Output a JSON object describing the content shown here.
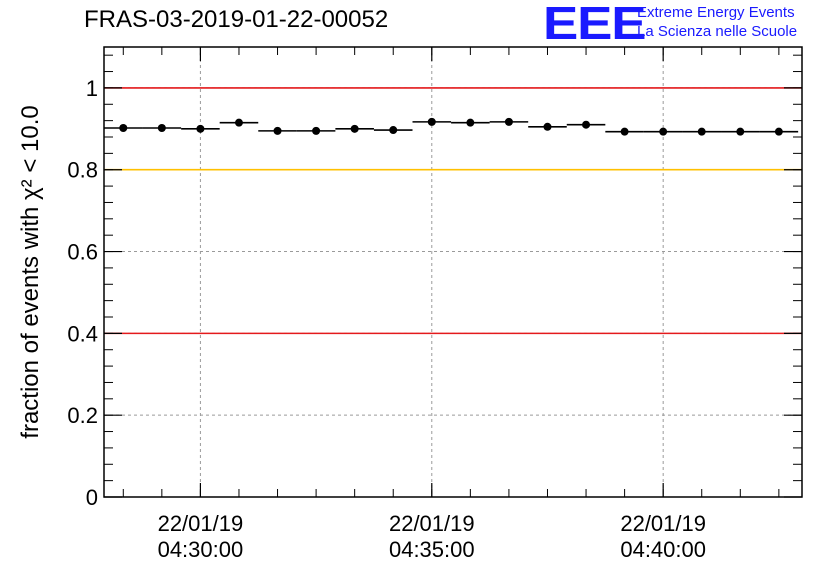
{
  "header": {
    "title": "FRAS-03-2019-01-22-00052",
    "logo": "EEE",
    "logo_line1": "Extreme Energy Events",
    "logo_line2": "La Scienza nelle Scuole"
  },
  "chart_data": {
    "type": "scatter",
    "title": "FRAS-03-2019-01-22-00052",
    "ylabel": "fraction of events with χ² < 10.0",
    "xlabel": "",
    "ylim": [
      0,
      1.1
    ],
    "xlim": [
      "2019-01-22T04:27:55",
      "2019-01-22T04:43:00"
    ],
    "grid": true,
    "y_ticks": [
      0,
      0.2,
      0.4,
      0.6,
      0.8,
      1
    ],
    "y_tick_labels": [
      "0",
      "0.2",
      "0.4",
      "0.6",
      "0.8",
      "1"
    ],
    "x_ticks": [
      {
        "time": "2019-01-22T04:30:00",
        "line1": "22/01/19",
        "line2": "04:30:00"
      },
      {
        "time": "2019-01-22T04:35:00",
        "line1": "22/01/19",
        "line2": "04:35:00"
      },
      {
        "time": "2019-01-22T04:40:00",
        "line1": "22/01/19",
        "line2": "04:40:00"
      }
    ],
    "reference_lines": [
      {
        "y": 1.0,
        "color": "#e41a1c"
      },
      {
        "y": 0.8,
        "color": "#ffc000"
      },
      {
        "y": 0.4,
        "color": "#e41a1c"
      }
    ],
    "series": [
      {
        "color": "#000000",
        "bin_width_s": 50,
        "x": [
          "04:28:20",
          "04:29:10",
          "04:30:00",
          "04:30:50",
          "04:31:40",
          "04:32:30",
          "04:33:20",
          "04:34:10",
          "04:35:00",
          "04:35:50",
          "04:36:40",
          "04:37:30",
          "04:38:20",
          "04:39:10",
          "04:40:00",
          "04:40:50",
          "04:41:40",
          "04:42:30"
        ],
        "y": [
          0.902,
          0.902,
          0.9,
          0.915,
          0.895,
          0.895,
          0.9,
          0.897,
          0.917,
          0.915,
          0.917,
          0.905,
          0.91,
          0.893,
          0.893,
          0.893,
          0.893,
          0.893
        ]
      }
    ]
  }
}
